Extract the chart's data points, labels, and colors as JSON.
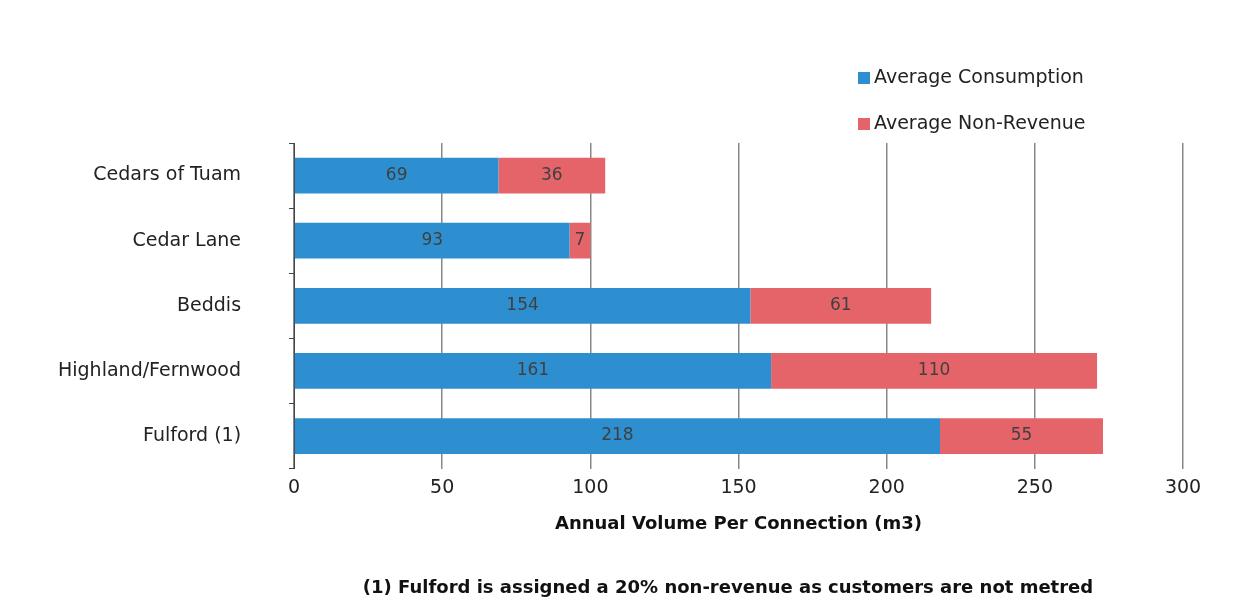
{
  "chart_data": {
    "type": "bar",
    "orientation": "horizontal",
    "stacked": true,
    "categories": [
      "Cedars of Tuam",
      "Cedar Lane",
      "Beddis",
      "Highland/Fernwood",
      "Fulford (1)"
    ],
    "series": [
      {
        "name": "Average Consumption",
        "color": "#2e8fd0",
        "values": [
          69,
          93,
          154,
          161,
          218
        ]
      },
      {
        "name": "Average Non-Revenue",
        "color": "#e5646a",
        "values": [
          36,
          7,
          61,
          110,
          55
        ]
      }
    ],
    "xlim": [
      0,
      300
    ],
    "xticks": [
      0,
      50,
      100,
      150,
      200,
      250,
      300
    ],
    "xlabel": "Annual Volume Per Connection (m3)",
    "annotations": [
      "(1) Fulford is assigned a 20% non-revenue as customers are not metred"
    ],
    "data_labels": true,
    "grid": "x",
    "legend": "top right"
  }
}
